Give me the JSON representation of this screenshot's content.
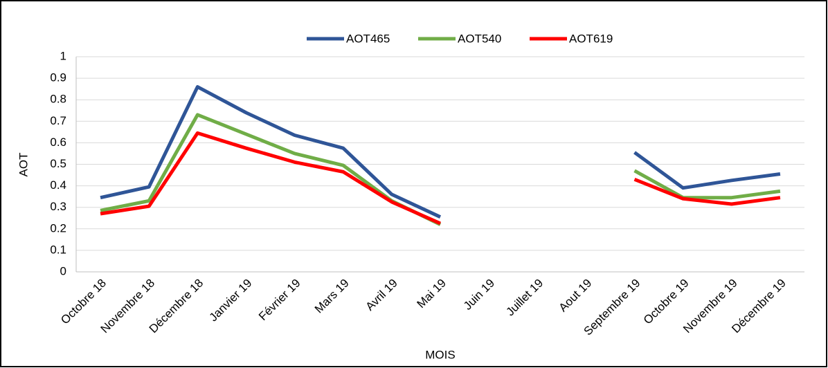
{
  "chart_data": {
    "type": "line",
    "categories": [
      "Octobre 18",
      "Novembre 18",
      "Décembre 18",
      "Janvier 19",
      "Février 19",
      "Mars 19",
      "Avril 19",
      "Mai 19",
      "Juin 19",
      "Juillet 19",
      "Aout 19",
      "Septembre 19",
      "Octobre 19",
      "Novembre 19",
      "Décembre 19"
    ],
    "series": [
      {
        "name": "AOT465",
        "color": "#2f5597",
        "values": [
          0.345,
          0.395,
          0.86,
          0.74,
          0.635,
          0.575,
          0.36,
          0.255,
          null,
          null,
          null,
          0.555,
          0.39,
          0.425,
          0.455
        ]
      },
      {
        "name": "AOT540",
        "color": "#70ad47",
        "values": [
          0.285,
          0.33,
          0.73,
          0.64,
          0.55,
          0.495,
          0.33,
          0.22,
          null,
          null,
          null,
          0.47,
          0.345,
          0.345,
          0.375
        ]
      },
      {
        "name": "AOT619",
        "color": "#ff0000",
        "values": [
          0.27,
          0.305,
          0.645,
          0.575,
          0.51,
          0.465,
          0.325,
          0.225,
          null,
          null,
          null,
          0.43,
          0.34,
          0.315,
          0.345
        ]
      }
    ],
    "x_label": "MOIS",
    "y_label": "AOT",
    "ylim": [
      0,
      1
    ],
    "yticks": [
      0,
      0.1,
      0.2,
      0.3,
      0.4,
      0.5,
      0.6,
      0.7,
      0.8,
      0.9,
      1
    ],
    "grid": true,
    "legend": "top"
  }
}
